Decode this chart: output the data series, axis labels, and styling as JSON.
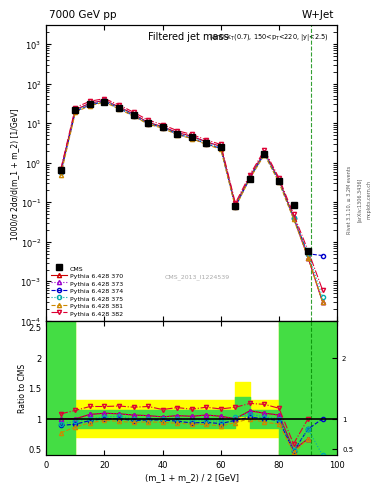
{
  "title_left": "7000 GeV pp",
  "title_right": "W+Jet",
  "cms_label": "CMS_2013_I1224539",
  "ylabel_main": "1000/σ 2dσ/d(m_1 + m_2) [1/GeV]",
  "ylabel_ratio": "Ratio to CMS",
  "xlabel": "(m_1 + m_2) / 2 [GeV]",
  "rivet_label": "Rivet 3.1.10, ≥ 3.2M events",
  "arxiv_label": "[arXiv:1306.3436]",
  "mcplots_label": "mcplots.cern.ch",
  "x_data": [
    5,
    10,
    15,
    20,
    25,
    30,
    35,
    40,
    45,
    50,
    55,
    60,
    65,
    70,
    75,
    80,
    85,
    90,
    95
  ],
  "cms_y": [
    0.65,
    22,
    30,
    35,
    24,
    16,
    10,
    8,
    5.5,
    4.5,
    3.2,
    2.5,
    0.08,
    0.4,
    1.7,
    0.35,
    0.085,
    0.006,
    null
  ],
  "series": [
    {
      "label": "Pythia 6.428 370",
      "color": "#cc0000",
      "linestyle": "-",
      "marker": "^",
      "markersize": 3,
      "fillstyle": "none",
      "y": [
        0.65,
        22,
        32,
        38,
        26,
        17,
        10.5,
        8.2,
        5.8,
        4.7,
        3.4,
        2.6,
        0.085,
        0.45,
        1.85,
        0.37,
        0.042,
        0.004,
        0.0003
      ]
    },
    {
      "label": "Pythia 6.428 373",
      "color": "#9900cc",
      "linestyle": ":",
      "marker": "^",
      "markersize": 3,
      "fillstyle": "none",
      "y": [
        0.65,
        22,
        32,
        38,
        26,
        17,
        10.5,
        8.2,
        5.8,
        4.7,
        3.4,
        2.6,
        0.085,
        0.45,
        1.85,
        0.37,
        0.042,
        0.004,
        0.0003
      ]
    },
    {
      "label": "Pythia 6.428 374",
      "color": "#0000cc",
      "linestyle": "--",
      "marker": "o",
      "markersize": 3,
      "fillstyle": "none",
      "y": [
        0.58,
        20,
        29,
        35,
        24,
        15.5,
        9.8,
        7.8,
        5.3,
        4.2,
        3.0,
        2.3,
        0.078,
        0.41,
        1.7,
        0.34,
        0.04,
        0.005,
        0.0045
      ]
    },
    {
      "label": "Pythia 6.428 375",
      "color": "#00aaaa",
      "linestyle": ":",
      "marker": "o",
      "markersize": 3,
      "fillstyle": "none",
      "y": [
        0.6,
        21,
        30,
        36,
        25,
        16,
        10.0,
        8.0,
        5.5,
        4.4,
        3.1,
        2.4,
        0.082,
        0.43,
        1.75,
        0.35,
        0.041,
        0.005,
        0.0004
      ]
    },
    {
      "label": "Pythia 6.428 381",
      "color": "#cc8800",
      "linestyle": "--",
      "marker": "^",
      "markersize": 3,
      "fillstyle": "none",
      "y": [
        0.5,
        19,
        28,
        34,
        23,
        15,
        9.5,
        7.5,
        5.1,
        4.1,
        2.9,
        2.2,
        0.075,
        0.4,
        1.6,
        0.32,
        0.038,
        0.004,
        0.0003
      ]
    },
    {
      "label": "Pythia 6.428 382",
      "color": "#dd0033",
      "linestyle": "-.",
      "marker": "v",
      "markersize": 3,
      "fillstyle": "none",
      "y": [
        0.7,
        25,
        36,
        42,
        29,
        19,
        12,
        9.2,
        6.5,
        5.2,
        3.8,
        2.9,
        0.095,
        0.5,
        2.1,
        0.41,
        0.05,
        0.006,
        0.0006
      ]
    }
  ],
  "ratio_series": [
    {
      "color": "#cc0000",
      "linestyle": "-",
      "marker": "^",
      "markersize": 3,
      "fillstyle": "none",
      "y": [
        1.0,
        1.0,
        1.07,
        1.09,
        1.08,
        1.06,
        1.05,
        1.03,
        1.05,
        1.04,
        1.06,
        1.04,
        1.0,
        1.13,
        1.09,
        1.06,
        0.49,
        0.67,
        null
      ]
    },
    {
      "color": "#9900cc",
      "linestyle": ":",
      "marker": "^",
      "markersize": 3,
      "fillstyle": "none",
      "y": [
        1.0,
        1.0,
        1.07,
        1.09,
        1.08,
        1.06,
        1.05,
        1.03,
        1.05,
        1.04,
        1.06,
        1.04,
        1.0,
        1.13,
        1.09,
        1.06,
        0.49,
        0.67,
        null
      ]
    },
    {
      "color": "#0000cc",
      "linestyle": "--",
      "marker": "o",
      "markersize": 3,
      "fillstyle": "none",
      "y": [
        0.89,
        0.91,
        0.97,
        1.0,
        1.0,
        0.97,
        0.98,
        0.98,
        0.96,
        0.93,
        0.94,
        0.92,
        0.975,
        1.025,
        1.0,
        0.97,
        0.47,
        0.83,
        1.0
      ]
    },
    {
      "color": "#00aaaa",
      "linestyle": ":",
      "marker": "o",
      "markersize": 3,
      "fillstyle": "none",
      "y": [
        0.92,
        0.955,
        1.0,
        1.03,
        1.04,
        1.0,
        1.0,
        1.0,
        1.0,
        0.978,
        0.969,
        0.96,
        1.025,
        1.075,
        1.03,
        1.0,
        0.48,
        0.83,
        0.4
      ]
    },
    {
      "color": "#cc8800",
      "linestyle": "--",
      "marker": "^",
      "markersize": 3,
      "fillstyle": "none",
      "y": [
        0.77,
        0.864,
        0.933,
        0.971,
        0.958,
        0.938,
        0.95,
        0.938,
        0.927,
        0.911,
        0.906,
        0.88,
        0.9375,
        1.0,
        0.941,
        0.914,
        0.447,
        0.667,
        null
      ]
    },
    {
      "color": "#dd0033",
      "linestyle": "-.",
      "marker": "v",
      "markersize": 3,
      "fillstyle": "none",
      "y": [
        1.08,
        1.136,
        1.2,
        1.2,
        1.208,
        1.188,
        1.2,
        1.15,
        1.182,
        1.156,
        1.188,
        1.16,
        1.1875,
        1.25,
        1.235,
        1.171,
        0.588,
        1.0,
        null
      ]
    }
  ],
  "band_x_edges": [
    0,
    5,
    10,
    15,
    20,
    25,
    30,
    35,
    40,
    45,
    50,
    55,
    60,
    65,
    70,
    75,
    80,
    85,
    90,
    95,
    100
  ],
  "green_lo": [
    0.4,
    0.4,
    0.85,
    0.85,
    0.85,
    0.85,
    0.85,
    0.85,
    0.85,
    0.85,
    0.85,
    0.85,
    0.85,
    1.05,
    0.85,
    0.85,
    0.4,
    0.4,
    0.4,
    0.4,
    0.4
  ],
  "green_hi": [
    2.6,
    2.6,
    1.15,
    1.15,
    1.15,
    1.15,
    1.15,
    1.15,
    1.15,
    1.15,
    1.15,
    1.15,
    1.15,
    1.35,
    1.15,
    1.15,
    2.6,
    2.6,
    2.6,
    2.6,
    2.6
  ],
  "yellow_lo": [
    0.4,
    0.4,
    0.7,
    0.7,
    0.7,
    0.7,
    0.7,
    0.7,
    0.7,
    0.7,
    0.7,
    0.7,
    0.7,
    0.7,
    0.7,
    0.7,
    0.4,
    0.4,
    0.45,
    0.45,
    0.45
  ],
  "yellow_hi": [
    2.6,
    2.6,
    1.3,
    1.3,
    1.3,
    1.3,
    1.3,
    1.3,
    1.3,
    1.3,
    1.3,
    1.3,
    1.3,
    1.6,
    1.3,
    1.3,
    2.6,
    2.6,
    2.6,
    2.6,
    2.6
  ],
  "ylim_main": [
    0.0001,
    3000.0
  ],
  "ylim_ratio": [
    0.4,
    2.6
  ],
  "xlim": [
    0,
    100
  ],
  "dashed_line_x": 91,
  "bg_color": "#ffffff"
}
